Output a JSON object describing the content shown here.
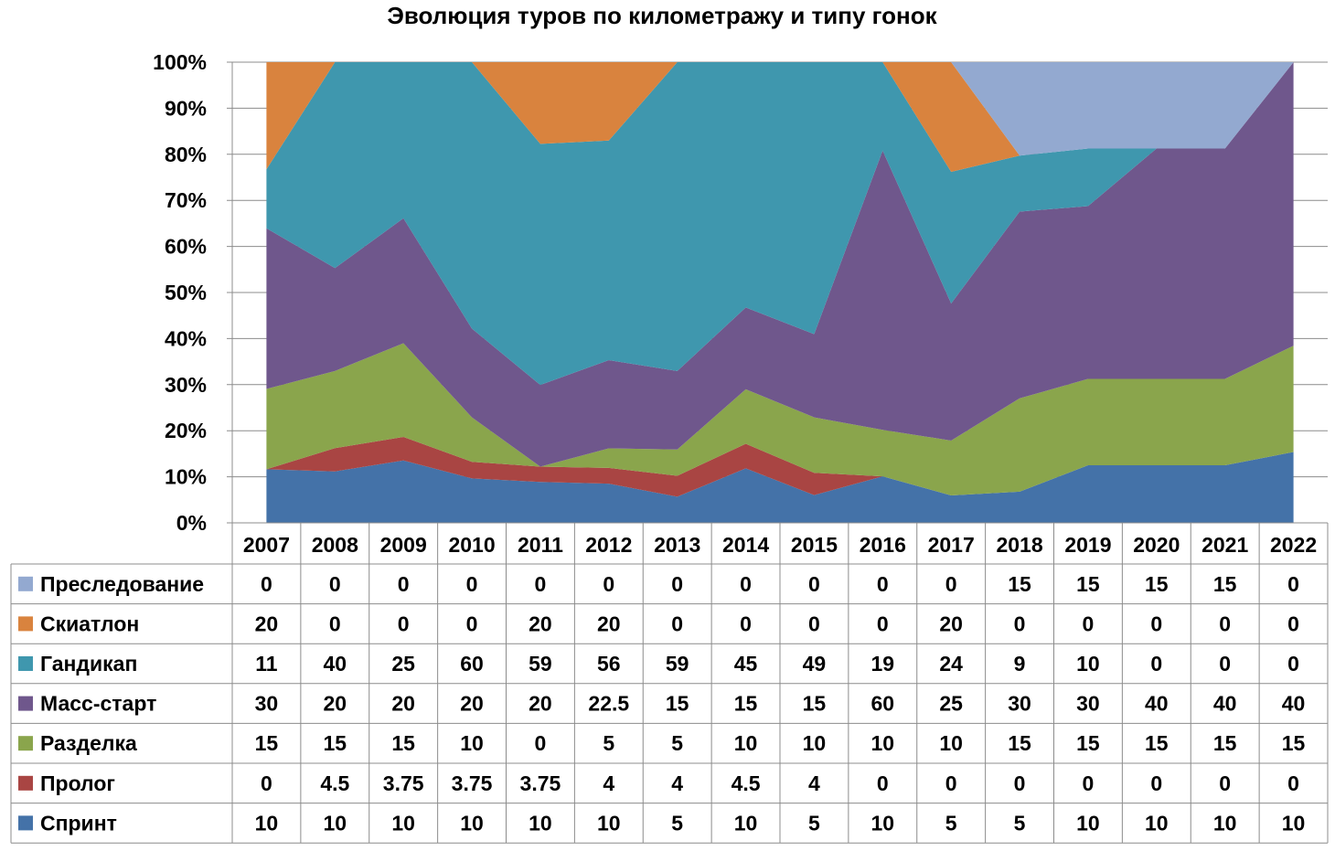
{
  "chart_data": {
    "type": "area",
    "stacking": "percent",
    "title": "Эволюция туров по километражу и типу гонок",
    "xlabel": "",
    "ylabel": "",
    "ylim": [
      0,
      100
    ],
    "y_tick_labels": [
      "0%",
      "10%",
      "20%",
      "30%",
      "40%",
      "50%",
      "60%",
      "70%",
      "80%",
      "90%",
      "100%"
    ],
    "grid": true,
    "legend": "data-table-left",
    "categories": [
      "2007",
      "2008",
      "2009",
      "2010",
      "2011",
      "2012",
      "2013",
      "2014",
      "2015",
      "2016",
      "2017",
      "2018",
      "2019",
      "2020",
      "2021",
      "2022"
    ],
    "series": [
      {
        "name": "Спринт",
        "color": "#4472A8",
        "values": [
          10,
          10,
          10,
          10,
          10,
          10,
          5,
          10,
          5,
          10,
          5,
          5,
          10,
          10,
          10,
          10
        ]
      },
      {
        "name": "Пролог",
        "color": "#A94543",
        "values": [
          0,
          4.5,
          3.75,
          3.75,
          3.75,
          4,
          4,
          4.5,
          4,
          0,
          0,
          0,
          0,
          0,
          0,
          0
        ]
      },
      {
        "name": "Разделка",
        "color": "#8AA54C",
        "values": [
          15,
          15,
          15,
          10,
          0,
          5,
          5,
          10,
          10,
          10,
          10,
          15,
          15,
          15,
          15,
          15
        ]
      },
      {
        "name": "Масс-старт",
        "color": "#6F578C",
        "values": [
          30,
          20,
          20,
          20,
          20,
          22.5,
          15,
          15,
          15,
          60,
          25,
          30,
          30,
          40,
          40,
          40
        ]
      },
      {
        "name": "Гандикап",
        "color": "#3F97AE",
        "values": [
          11,
          40,
          25,
          60,
          59,
          56,
          59,
          45,
          49,
          19,
          24,
          9,
          10,
          0,
          0,
          0
        ]
      },
      {
        "name": "Скиатлон",
        "color": "#D9833E",
        "values": [
          20,
          0,
          0,
          0,
          20,
          20,
          0,
          0,
          0,
          0,
          20,
          0,
          0,
          0,
          0,
          0
        ]
      },
      {
        "name": "Преследование",
        "color": "#93A9D0",
        "values": [
          0,
          0,
          0,
          0,
          0,
          0,
          0,
          0,
          0,
          0,
          0,
          15,
          15,
          15,
          15,
          0
        ]
      }
    ],
    "table_rows_order": [
      "Преследование",
      "Скиатлон",
      "Гандикап",
      "Масс-старт",
      "Разделка",
      "Пролог",
      "Спринт"
    ]
  }
}
